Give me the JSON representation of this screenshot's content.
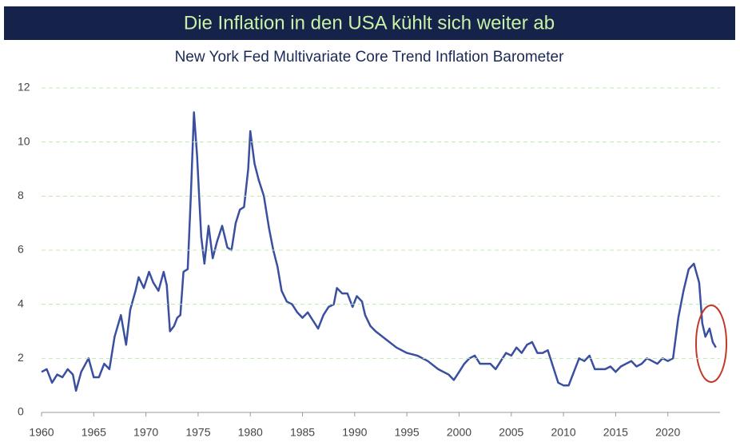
{
  "chart_data": {
    "type": "line",
    "title": "Die Inflation in den USA kühlt sich weiter ab",
    "subtitle": "New York Fed Multivariate Core Trend Inflation Barometer",
    "x": [
      1960,
      1960.5,
      1961,
      1961.5,
      1962,
      1962.5,
      1963,
      1963.3,
      1963.8,
      1964.5,
      1965,
      1965.5,
      1966,
      1966.5,
      1967,
      1967.6,
      1968.1,
      1968.5,
      1969,
      1969.3,
      1969.8,
      1970.3,
      1970.7,
      1971.2,
      1971.7,
      1972,
      1972.3,
      1972.7,
      1973,
      1973.3,
      1973.6,
      1974,
      1974.3,
      1974.6,
      1974.9,
      1975.3,
      1975.6,
      1976,
      1976.4,
      1976.8,
      1977.3,
      1977.8,
      1978.2,
      1978.6,
      1979,
      1979.4,
      1979.8,
      1980,
      1980.4,
      1980.8,
      1981.3,
      1981.8,
      1982.2,
      1982.6,
      1983,
      1983.5,
      1984,
      1984.5,
      1985,
      1985.5,
      1986,
      1986.5,
      1987,
      1987.5,
      1988,
      1988.3,
      1988.8,
      1989.3,
      1989.8,
      1990.2,
      1990.7,
      1991,
      1991.5,
      1992,
      1993,
      1994,
      1995,
      1996,
      1997,
      1998,
      1999,
      1999.5,
      2000,
      2000.5,
      2001,
      2001.5,
      2002,
      2003,
      2003.5,
      2004,
      2004.5,
      2005,
      2005.5,
      2006,
      2006.5,
      2007,
      2007.5,
      2008,
      2008.5,
      2009,
      2009.5,
      2010,
      2010.5,
      2011,
      2011.5,
      2012,
      2012.5,
      2013,
      2014,
      2014.5,
      2015,
      2015.5,
      2016,
      2016.5,
      2017,
      2017.5,
      2018,
      2018.5,
      2019,
      2019.5,
      2020,
      2020.5,
      2021,
      2021.5,
      2022,
      2022.5,
      2023,
      2023.3,
      2023.6,
      2024,
      2024.3,
      2024.6
    ],
    "series": [
      {
        "name": "Multivariate Core Trend",
        "color": "#3a4fa0",
        "values": [
          1.5,
          1.6,
          1.1,
          1.4,
          1.3,
          1.6,
          1.4,
          0.8,
          1.5,
          2.0,
          1.3,
          1.3,
          1.8,
          1.6,
          2.8,
          3.6,
          2.5,
          3.8,
          4.5,
          5.0,
          4.6,
          5.2,
          4.8,
          4.5,
          5.2,
          4.7,
          3.0,
          3.2,
          3.5,
          3.6,
          5.2,
          5.3,
          8.0,
          11.1,
          9.5,
          6.5,
          5.5,
          6.9,
          5.7,
          6.3,
          6.9,
          6.1,
          6.0,
          7.0,
          7.5,
          7.6,
          9.0,
          10.4,
          9.2,
          8.6,
          8.0,
          6.8,
          6.0,
          5.4,
          4.5,
          4.1,
          4.0,
          3.7,
          3.5,
          3.7,
          3.4,
          3.1,
          3.6,
          3.9,
          4.0,
          4.6,
          4.4,
          4.4,
          3.9,
          4.3,
          4.1,
          3.6,
          3.2,
          3.0,
          2.7,
          2.4,
          2.2,
          2.1,
          1.9,
          1.6,
          1.4,
          1.2,
          1.5,
          1.8,
          2.0,
          2.1,
          1.8,
          1.8,
          1.6,
          1.9,
          2.2,
          2.1,
          2.4,
          2.2,
          2.5,
          2.6,
          2.2,
          2.2,
          2.3,
          1.7,
          1.1,
          1.0,
          1.0,
          1.5,
          2.0,
          1.9,
          2.1,
          1.6,
          1.6,
          1.7,
          1.5,
          1.7,
          1.8,
          1.9,
          1.7,
          1.8,
          2.0,
          1.9,
          1.8,
          2.0,
          1.9,
          2.0,
          3.5,
          4.5,
          5.3,
          5.5,
          4.8,
          3.3,
          2.8,
          3.1,
          2.6,
          2.4
        ]
      }
    ],
    "xlim": [
      1960,
      2025
    ],
    "xticks": [
      1960,
      1965,
      1970,
      1975,
      1980,
      1985,
      1990,
      1995,
      2000,
      2005,
      2010,
      2015,
      2020
    ],
    "ylim": [
      0,
      12
    ],
    "yticks": [
      0,
      2,
      4,
      6,
      8,
      10,
      12
    ],
    "grid": true
  }
}
